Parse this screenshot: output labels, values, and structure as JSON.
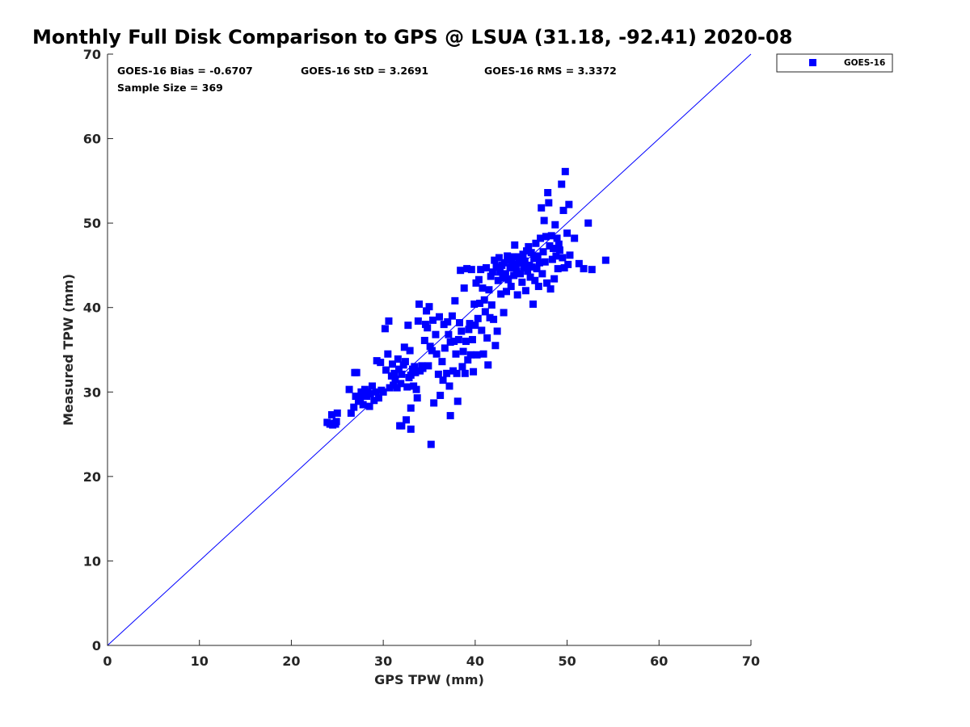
{
  "chart_data": {
    "type": "scatter",
    "title": "Monthly Full Disk Comparison to GPS @ LSUA (31.18, -92.41) 2020-08",
    "xlabel": "GPS TPW (mm)",
    "ylabel": "Measured TPW (mm)",
    "xlim": [
      0,
      70
    ],
    "ylim": [
      0,
      70
    ],
    "xticks": [
      "0",
      "10",
      "20",
      "30",
      "40",
      "50",
      "60",
      "70"
    ],
    "yticks": [
      "0",
      "10",
      "20",
      "30",
      "40",
      "50",
      "60",
      "70"
    ],
    "grid": false,
    "legend": {
      "placement": "top-right outside",
      "entries": [
        "GOES-16"
      ]
    },
    "annotations": {
      "bias": "GOES-16 Bias = -0.6707",
      "std": "GOES-16 StD = 3.2691",
      "rms": "GOES-16 RMS = 3.3372",
      "sample": "Sample Size = 369"
    },
    "reference_line": {
      "x": [
        0,
        70
      ],
      "y": [
        0,
        70
      ],
      "color": "#0000ff"
    },
    "series": [
      {
        "name": "GOES-16",
        "color": "#0000ff",
        "marker": "square",
        "points": [
          [
            23.9,
            26.4
          ],
          [
            24.2,
            26.2
          ],
          [
            24.4,
            27.3
          ],
          [
            24.7,
            26.3
          ],
          [
            24.9,
            26.5
          ],
          [
            25.0,
            27.5
          ],
          [
            24.5,
            26.1
          ],
          [
            24.8,
            26.2
          ],
          [
            26.3,
            30.3
          ],
          [
            26.5,
            27.5
          ],
          [
            26.8,
            28.2
          ],
          [
            26.9,
            32.3
          ],
          [
            27.1,
            32.3
          ],
          [
            27.0,
            29.5
          ],
          [
            27.3,
            28.9
          ],
          [
            27.5,
            29.2
          ],
          [
            27.6,
            30.0
          ],
          [
            27.8,
            28.5
          ],
          [
            28.0,
            30.3
          ],
          [
            28.2,
            29.5
          ],
          [
            28.3,
            30.0
          ],
          [
            28.5,
            28.3
          ],
          [
            28.6,
            29.8
          ],
          [
            28.8,
            30.7
          ],
          [
            29.0,
            29.0
          ],
          [
            29.2,
            30.0
          ],
          [
            29.3,
            33.7
          ],
          [
            29.5,
            29.3
          ],
          [
            29.7,
            33.5
          ],
          [
            29.8,
            30.2
          ],
          [
            30.0,
            30.0
          ],
          [
            30.2,
            37.5
          ],
          [
            30.3,
            32.6
          ],
          [
            30.5,
            34.5
          ],
          [
            30.6,
            38.4
          ],
          [
            30.7,
            30.5
          ],
          [
            30.9,
            31.9
          ],
          [
            31.0,
            33.3
          ],
          [
            31.1,
            30.8
          ],
          [
            31.2,
            32.2
          ],
          [
            31.3,
            31.5
          ],
          [
            31.5,
            30.5
          ],
          [
            31.6,
            33.9
          ],
          [
            31.7,
            32.7
          ],
          [
            31.8,
            26.0
          ],
          [
            31.9,
            31.0
          ],
          [
            32.0,
            32.1
          ],
          [
            32.0,
            26.0
          ],
          [
            32.2,
            33.2
          ],
          [
            32.3,
            35.3
          ],
          [
            32.4,
            33.6
          ],
          [
            32.5,
            26.7
          ],
          [
            32.6,
            30.6
          ],
          [
            32.7,
            37.9
          ],
          [
            32.8,
            31.7
          ],
          [
            32.9,
            34.9
          ],
          [
            33.0,
            32.0
          ],
          [
            33.0,
            28.1
          ],
          [
            33.0,
            25.6
          ],
          [
            33.2,
            32.7
          ],
          [
            33.3,
            30.7
          ],
          [
            33.4,
            33.0
          ],
          [
            33.5,
            32.3
          ],
          [
            33.6,
            30.3
          ],
          [
            33.7,
            29.3
          ],
          [
            33.8,
            38.4
          ],
          [
            33.9,
            40.4
          ],
          [
            34.0,
            32.5
          ],
          [
            34.2,
            33.1
          ],
          [
            34.3,
            32.8
          ],
          [
            34.5,
            36.1
          ],
          [
            34.6,
            38.0
          ],
          [
            34.7,
            39.6
          ],
          [
            34.8,
            37.6
          ],
          [
            34.9,
            33.1
          ],
          [
            35.0,
            40.1
          ],
          [
            35.1,
            35.4
          ],
          [
            35.2,
            23.8
          ],
          [
            35.3,
            34.9
          ],
          [
            35.4,
            38.5
          ],
          [
            35.5,
            28.7
          ],
          [
            35.7,
            36.8
          ],
          [
            35.8,
            34.5
          ],
          [
            36.0,
            32.1
          ],
          [
            36.1,
            38.9
          ],
          [
            36.2,
            29.6
          ],
          [
            36.4,
            33.6
          ],
          [
            36.5,
            31.4
          ],
          [
            36.6,
            38.0
          ],
          [
            36.7,
            35.2
          ],
          [
            36.9,
            32.2
          ],
          [
            37.0,
            38.3
          ],
          [
            37.1,
            36.8
          ],
          [
            37.2,
            30.7
          ],
          [
            37.3,
            27.2
          ],
          [
            37.3,
            35.9
          ],
          [
            37.5,
            39.0
          ],
          [
            37.6,
            32.5
          ],
          [
            37.7,
            36.0
          ],
          [
            37.8,
            40.8
          ],
          [
            37.9,
            34.5
          ],
          [
            38.0,
            32.2
          ],
          [
            38.1,
            28.9
          ],
          [
            38.2,
            36.2
          ],
          [
            38.3,
            38.2
          ],
          [
            38.4,
            44.4
          ],
          [
            38.5,
            37.2
          ],
          [
            38.6,
            33.0
          ],
          [
            38.7,
            34.8
          ],
          [
            38.8,
            42.3
          ],
          [
            38.9,
            32.2
          ],
          [
            39.0,
            36.0
          ],
          [
            39.1,
            44.6
          ],
          [
            39.2,
            33.8
          ],
          [
            39.3,
            37.4
          ],
          [
            39.4,
            38.1
          ],
          [
            39.5,
            34.4
          ],
          [
            39.6,
            44.5
          ],
          [
            39.7,
            36.2
          ],
          [
            39.8,
            32.4
          ],
          [
            39.9,
            40.4
          ],
          [
            40.0,
            37.9
          ],
          [
            40.1,
            42.9
          ],
          [
            40.2,
            34.4
          ],
          [
            40.3,
            38.7
          ],
          [
            40.4,
            43.3
          ],
          [
            40.5,
            40.5
          ],
          [
            40.6,
            44.5
          ],
          [
            40.7,
            37.3
          ],
          [
            40.8,
            42.3
          ],
          [
            40.9,
            34.5
          ],
          [
            41.0,
            40.9
          ],
          [
            41.1,
            39.5
          ],
          [
            41.2,
            44.7
          ],
          [
            41.3,
            36.4
          ],
          [
            41.4,
            33.2
          ],
          [
            41.5,
            42.1
          ],
          [
            41.6,
            38.8
          ],
          [
            41.7,
            43.7
          ],
          [
            41.8,
            40.3
          ],
          [
            41.9,
            44.2
          ],
          [
            42.0,
            38.6
          ],
          [
            42.1,
            45.6
          ],
          [
            42.2,
            35.5
          ],
          [
            42.3,
            44.8
          ],
          [
            42.4,
            37.2
          ],
          [
            42.5,
            43.2
          ],
          [
            42.6,
            45.9
          ],
          [
            42.7,
            44.2
          ],
          [
            42.8,
            41.6
          ],
          [
            42.9,
            45.0
          ],
          [
            43.0,
            43.5
          ],
          [
            43.1,
            39.4
          ],
          [
            43.2,
            45.3
          ],
          [
            43.3,
            44.0
          ],
          [
            43.4,
            41.9
          ],
          [
            43.5,
            46.1
          ],
          [
            43.6,
            43.3
          ],
          [
            43.7,
            45.6
          ],
          [
            43.8,
            44.7
          ],
          [
            43.9,
            42.5
          ],
          [
            44.0,
            45.2
          ],
          [
            44.1,
            46.0
          ],
          [
            44.2,
            43.8
          ],
          [
            44.3,
            47.4
          ],
          [
            44.4,
            45.1
          ],
          [
            44.5,
            44.3
          ],
          [
            44.6,
            41.5
          ],
          [
            44.7,
            46.0
          ],
          [
            44.8,
            45.7
          ],
          [
            44.9,
            44.0
          ],
          [
            45.0,
            45.3
          ],
          [
            45.1,
            43.0
          ],
          [
            45.2,
            46.3
          ],
          [
            45.3,
            44.7
          ],
          [
            45.4,
            45.5
          ],
          [
            45.5,
            42.0
          ],
          [
            45.6,
            46.7
          ],
          [
            45.7,
            44.3
          ],
          [
            45.8,
            47.2
          ],
          [
            45.9,
            45.0
          ],
          [
            46.0,
            43.6
          ],
          [
            46.1,
            46.5
          ],
          [
            46.2,
            44.8
          ],
          [
            46.3,
            40.4
          ],
          [
            46.4,
            45.8
          ],
          [
            46.5,
            43.2
          ],
          [
            46.6,
            47.6
          ],
          [
            46.7,
            44.6
          ],
          [
            46.8,
            46.1
          ],
          [
            46.9,
            42.5
          ],
          [
            47.0,
            45.3
          ],
          [
            47.1,
            48.2
          ],
          [
            47.2,
            51.8
          ],
          [
            47.3,
            44.0
          ],
          [
            47.4,
            46.6
          ],
          [
            47.5,
            50.3
          ],
          [
            47.6,
            45.4
          ],
          [
            47.7,
            48.4
          ],
          [
            47.8,
            42.9
          ],
          [
            47.9,
            53.6
          ],
          [
            48.0,
            52.4
          ],
          [
            48.1,
            47.3
          ],
          [
            48.2,
            42.2
          ],
          [
            48.3,
            48.5
          ],
          [
            48.4,
            45.7
          ],
          [
            48.5,
            47.0
          ],
          [
            48.6,
            43.4
          ],
          [
            48.7,
            49.8
          ],
          [
            48.8,
            46.1
          ],
          [
            48.9,
            48.2
          ],
          [
            49.0,
            44.6
          ],
          [
            49.1,
            47.5
          ],
          [
            49.2,
            46.8
          ],
          [
            49.4,
            54.6
          ],
          [
            49.5,
            45.9
          ],
          [
            49.6,
            51.5
          ],
          [
            49.7,
            44.7
          ],
          [
            49.8,
            56.1
          ],
          [
            50.0,
            48.8
          ],
          [
            50.1,
            45.1
          ],
          [
            50.2,
            52.2
          ],
          [
            50.3,
            46.2
          ],
          [
            50.8,
            48.2
          ],
          [
            51.3,
            45.2
          ],
          [
            51.8,
            44.6
          ],
          [
            52.3,
            50.0
          ],
          [
            52.7,
            44.5
          ],
          [
            54.2,
            45.6
          ]
        ]
      }
    ]
  }
}
